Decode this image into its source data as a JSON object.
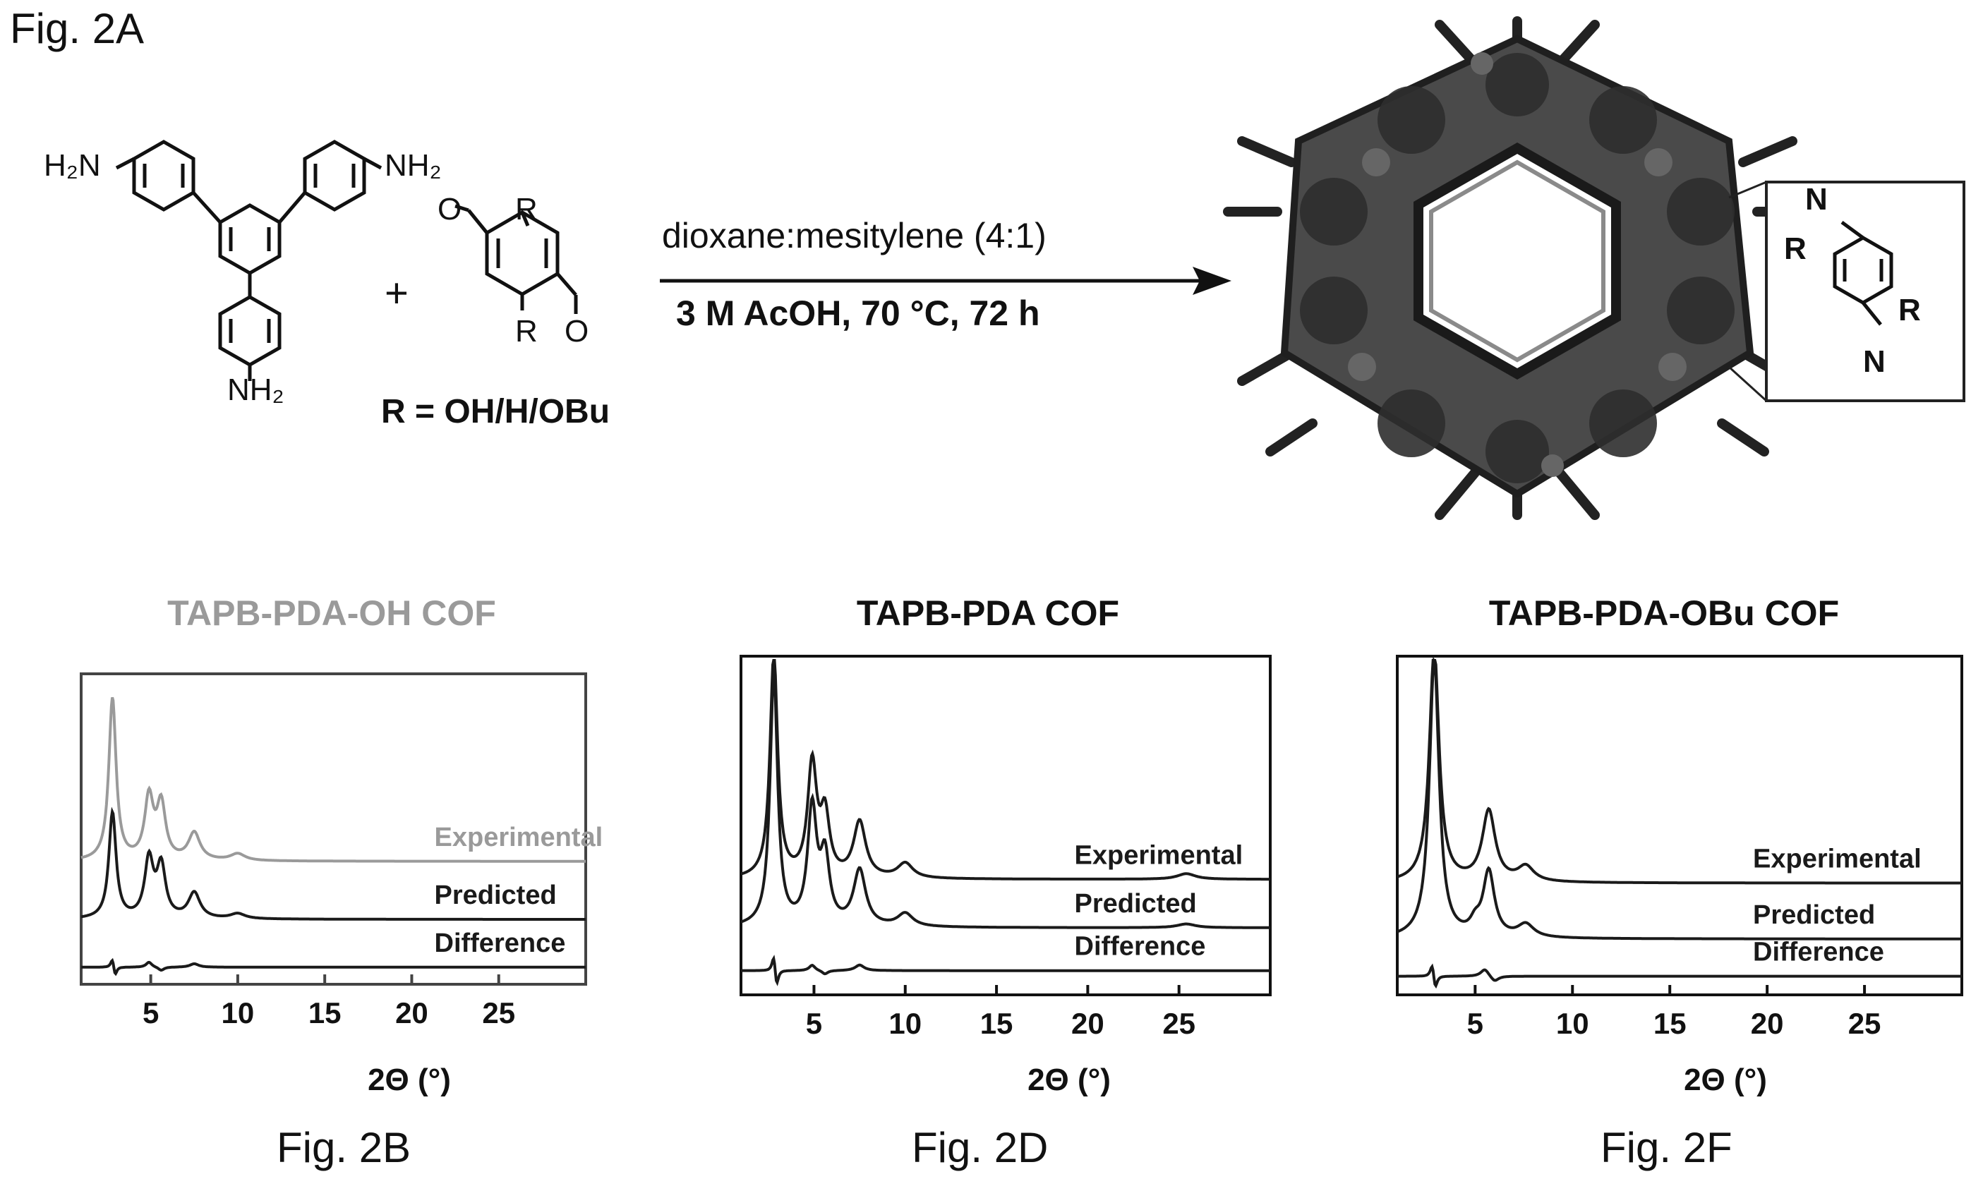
{
  "figure_labels": {
    "fig_2a": "Fig. 2A",
    "fig_2b": "Fig. 2B",
    "fig_2d": "Fig. 2D",
    "fig_2f": "Fig. 2F"
  },
  "scheme": {
    "amine_labels": [
      "H₂N",
      "NH₂",
      "NH₂"
    ],
    "plus": "+",
    "aldehyde_substituent": "R",
    "aldehyde_oxygen": "O",
    "r_definition": "R = OH/H/OBu",
    "conditions_top": "dioxane:mesitylene (4:1)",
    "conditions_bottom": "3 M AcOH, 70 °C, 72 h",
    "inset_labels": [
      "N",
      "R",
      "R",
      "N"
    ]
  },
  "colors": {
    "faded_trace": "#9a9a9a",
    "dark_trace": "#1a1a1a",
    "cof_body": "#4a4a4a"
  },
  "chart_data": [
    {
      "type": "line",
      "title": "TAPB-PDA-OH COF",
      "xlabel": "2Θ (°)",
      "xticks": [
        5,
        10,
        15,
        20,
        25
      ],
      "xlim": [
        1,
        30
      ],
      "series": [
        {
          "name": "Experimental",
          "color": "#9a9a9a",
          "baseline": 0.72,
          "peaks": [
            [
              2.8,
              0.95,
              0.25
            ],
            [
              4.9,
              0.36,
              0.3
            ],
            [
              5.6,
              0.32,
              0.3
            ],
            [
              7.5,
              0.16,
              0.4
            ],
            [
              10.0,
              0.04,
              0.5
            ]
          ]
        },
        {
          "name": "Predicted",
          "baseline": 0.38,
          "peaks": [
            [
              2.8,
              0.62,
              0.25
            ],
            [
              4.9,
              0.34,
              0.3
            ],
            [
              5.6,
              0.3,
              0.3
            ],
            [
              7.5,
              0.15,
              0.4
            ],
            [
              10.0,
              0.03,
              0.5
            ]
          ]
        },
        {
          "name": "Difference",
          "baseline": 0.1,
          "peaks": [
            [
              2.8,
              0.06,
              0.12
            ],
            [
              2.95,
              -0.06,
              0.12
            ],
            [
              4.9,
              0.03,
              0.2
            ],
            [
              5.6,
              -0.02,
              0.2
            ],
            [
              7.5,
              0.02,
              0.3
            ]
          ]
        }
      ]
    },
    {
      "type": "line",
      "title": "TAPB-PDA COF",
      "xlabel": "2Θ (°)",
      "xticks": [
        5,
        10,
        15,
        20,
        25
      ],
      "xlim": [
        1,
        30
      ],
      "series": [
        {
          "name": "Experimental",
          "baseline": 0.62,
          "peaks": [
            [
              2.8,
              1.2,
              0.25
            ],
            [
              4.9,
              0.6,
              0.3
            ],
            [
              5.6,
              0.32,
              0.3
            ],
            [
              7.5,
              0.3,
              0.4
            ],
            [
              10.0,
              0.08,
              0.5
            ],
            [
              25.4,
              0.03,
              0.6
            ]
          ]
        },
        {
          "name": "Predicted",
          "baseline": 0.36,
          "peaks": [
            [
              2.8,
              1.35,
              0.25
            ],
            [
              4.9,
              0.62,
              0.3
            ],
            [
              5.6,
              0.35,
              0.3
            ],
            [
              7.5,
              0.3,
              0.4
            ],
            [
              10.0,
              0.07,
              0.5
            ],
            [
              25.4,
              0.02,
              0.6
            ]
          ]
        },
        {
          "name": "Difference",
          "baseline": 0.13,
          "peaks": [
            [
              2.8,
              0.1,
              0.12
            ],
            [
              2.95,
              -0.1,
              0.12
            ],
            [
              4.9,
              0.03,
              0.2
            ],
            [
              5.6,
              -0.02,
              0.2
            ],
            [
              7.5,
              0.03,
              0.3
            ]
          ]
        }
      ]
    },
    {
      "type": "line",
      "title": "TAPB-PDA-OBu COF",
      "xlabel": "2Θ (°)",
      "xticks": [
        5,
        10,
        15,
        20,
        25
      ],
      "xlim": [
        1,
        30
      ],
      "series": [
        {
          "name": "Experimental",
          "baseline": 0.6,
          "peaks": [
            [
              2.9,
              1.25,
              0.3
            ],
            [
              5.7,
              0.38,
              0.4
            ],
            [
              7.6,
              0.08,
              0.5
            ]
          ]
        },
        {
          "name": "Predicted",
          "baseline": 0.3,
          "peaks": [
            [
              2.9,
              1.5,
              0.3
            ],
            [
              5.0,
              0.06,
              0.3
            ],
            [
              5.7,
              0.35,
              0.35
            ],
            [
              7.6,
              0.07,
              0.5
            ]
          ]
        },
        {
          "name": "Difference",
          "baseline": 0.1,
          "peaks": [
            [
              2.8,
              0.08,
              0.12
            ],
            [
              2.95,
              -0.08,
              0.12
            ],
            [
              5.5,
              0.04,
              0.25
            ],
            [
              6.0,
              -0.03,
              0.25
            ]
          ]
        }
      ]
    }
  ]
}
